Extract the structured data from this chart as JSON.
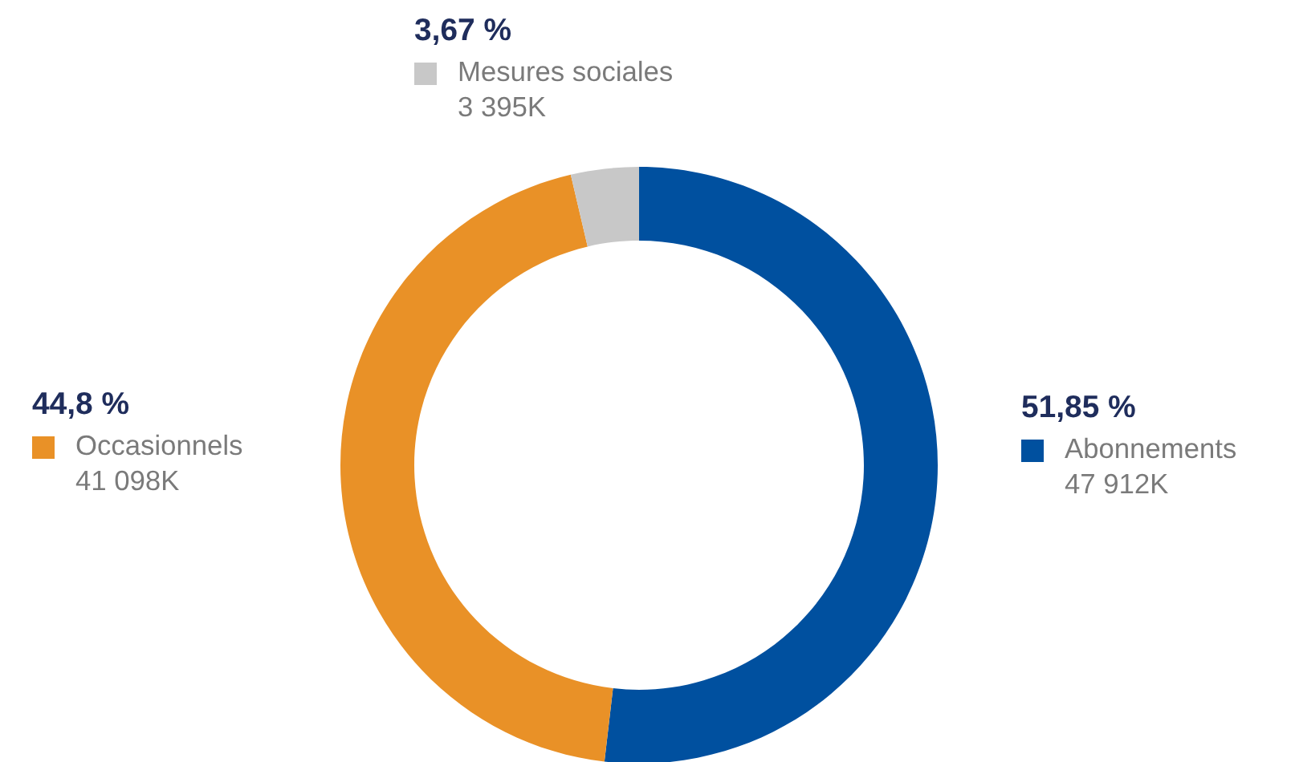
{
  "chart_data": {
    "type": "donut",
    "categories": [
      "Abonnements",
      "Occasionnels",
      "Mesures sociales"
    ],
    "values": [
      47912,
      41098,
      3395
    ],
    "colors": [
      "#00509f",
      "#e99127",
      "#c8c8c8"
    ],
    "value_labels": [
      "47 912K",
      "41 098K",
      "3 395K"
    ],
    "annotations": [
      "51,85 %",
      "44,8 %",
      "3,67 %"
    ],
    "legend": "top"
  }
}
